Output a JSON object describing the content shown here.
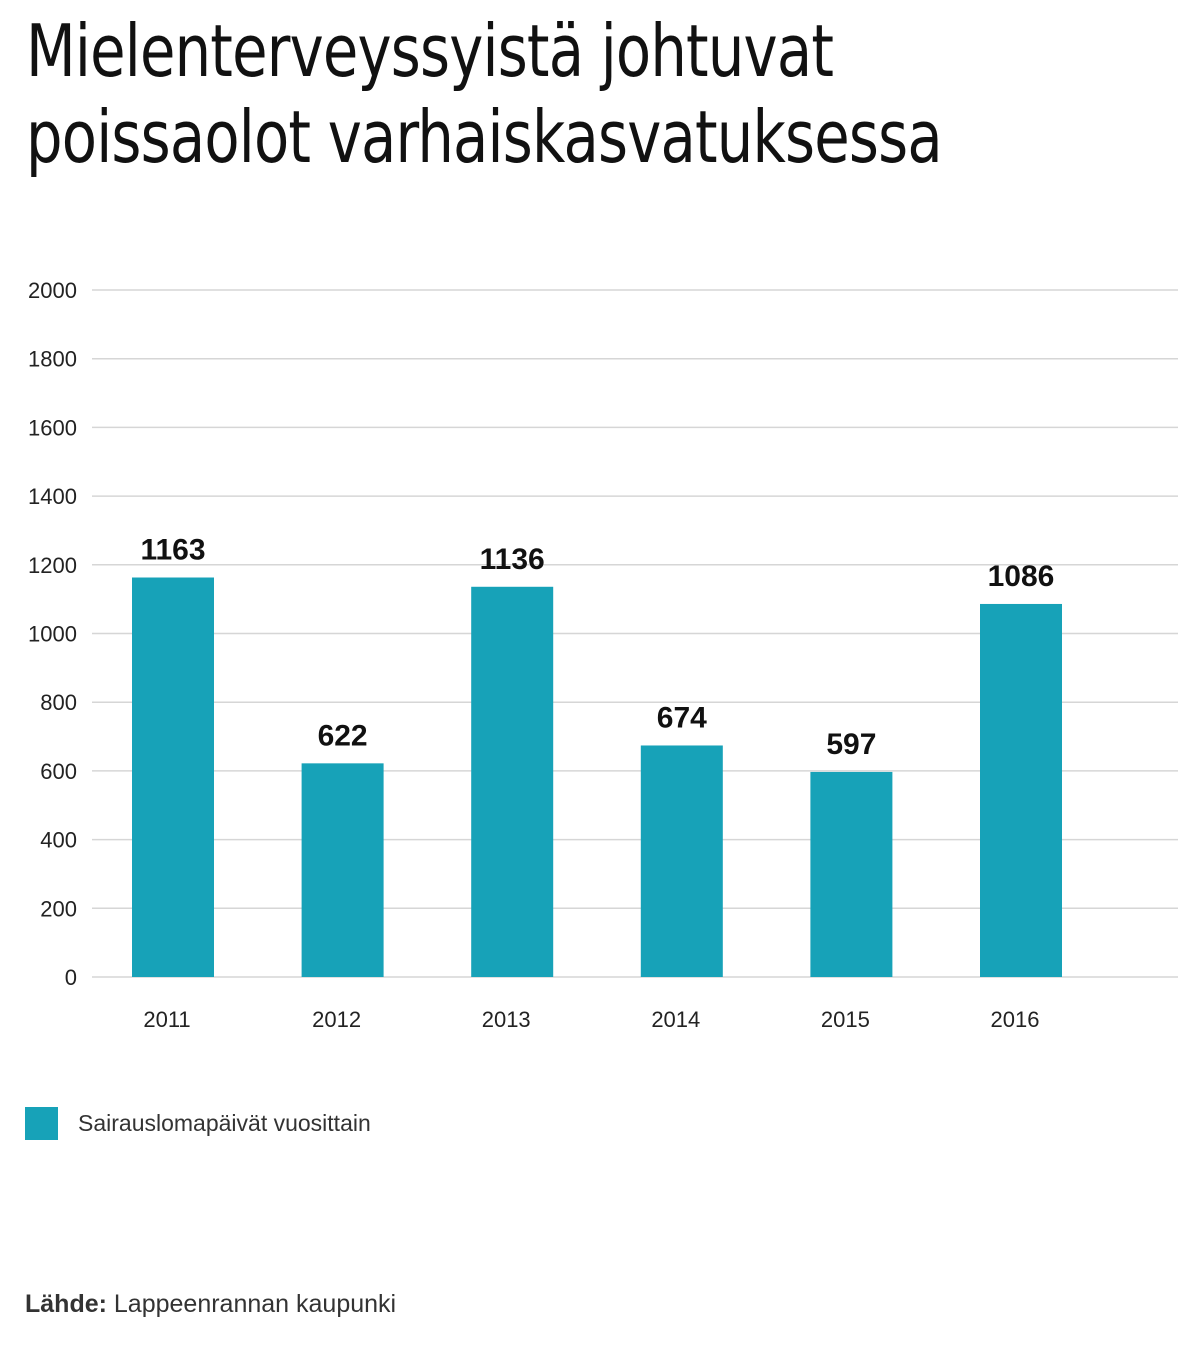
{
  "title": {
    "line1": "Mielenterveyssyistä johtuvat",
    "line2": "poissaolot varhaiskasvatuksessa"
  },
  "chart_data": {
    "type": "bar",
    "categories": [
      "2011",
      "2012",
      "2013",
      "2014",
      "2015",
      "2016"
    ],
    "series": [
      {
        "name": "Sairauslomapäivät vuosittain",
        "values": [
          1163,
          622,
          1136,
          674,
          597,
          1086
        ],
        "color": "#17a2b8"
      }
    ],
    "data_labels": [
      "1163",
      "622",
      "1136",
      "674",
      "597",
      "1086"
    ],
    "ylim": [
      0,
      2000
    ],
    "yticks": [
      0,
      200,
      400,
      600,
      800,
      1000,
      1200,
      1400,
      1600,
      1800,
      2000
    ],
    "grid": true,
    "legend_position": "bottom-left"
  },
  "legend": {
    "label": "Sairauslomapäivät vuosittain"
  },
  "source": {
    "label": "Lähde:",
    "text": "Lappeenrannan kaupunki"
  }
}
